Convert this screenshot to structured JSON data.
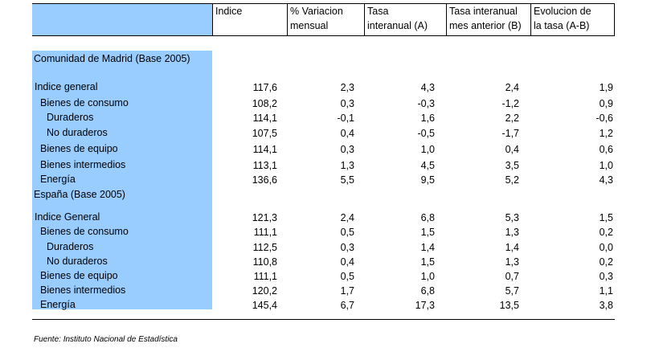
{
  "header": {
    "col1": "Indice",
    "col2_line1": "% Variacion",
    "col2_line2": "mensual",
    "col3_line1": "Tasa",
    "col3_line2": "interanual (A)",
    "col4_line1": "Tasa interanual",
    "col4_line2": "mes anterior (B)",
    "col5_line1": "Evolucion de",
    "col5_line2": "la tasa (A-B)"
  },
  "sections": [
    {
      "title": "Comunidad de Madrid (Base 2005)",
      "rows": [
        {
          "label": "Indice general",
          "level": 0,
          "indice": "117,6",
          "variacion": "2,3",
          "tasa_a": "4,3",
          "tasa_b": "2,4",
          "evolucion": "1,9"
        },
        {
          "label": "Bienes de consumo",
          "level": 1,
          "indice": "108,2",
          "variacion": "0,3",
          "tasa_a": "-0,3",
          "tasa_b": "-1,2",
          "evolucion": "0,9"
        },
        {
          "label": "Duraderos",
          "level": 2,
          "indice": "114,1",
          "variacion": "-0,1",
          "tasa_a": "1,6",
          "tasa_b": "2,2",
          "evolucion": "-0,6"
        },
        {
          "label": "No duraderos",
          "level": 2,
          "indice": "107,5",
          "variacion": "0,4",
          "tasa_a": "-0,5",
          "tasa_b": "-1,7",
          "evolucion": "1,2"
        },
        {
          "label": "Bienes de equipo",
          "level": 1,
          "indice": "114,1",
          "variacion": "0,3",
          "tasa_a": "1,0",
          "tasa_b": "0,4",
          "evolucion": "0,6"
        },
        {
          "label": "Bienes intermedios",
          "level": 1,
          "indice": "113,1",
          "variacion": "1,3",
          "tasa_a": "4,5",
          "tasa_b": "3,5",
          "evolucion": "1,0"
        },
        {
          "label": "Energía",
          "level": 1,
          "indice": "136,6",
          "variacion": "5,5",
          "tasa_a": "9,5",
          "tasa_b": "5,2",
          "evolucion": "4,3"
        }
      ]
    },
    {
      "title": "España (Base 2005)",
      "rows": [
        {
          "label": "Indice General",
          "level": 0,
          "indice": "121,3",
          "variacion": "2,4",
          "tasa_a": "6,8",
          "tasa_b": "5,3",
          "evolucion": "1,5"
        },
        {
          "label": "Bienes de consumo",
          "level": 1,
          "indice": "111,1",
          "variacion": "0,5",
          "tasa_a": "1,5",
          "tasa_b": "1,3",
          "evolucion": "0,2"
        },
        {
          "label": "Duraderos",
          "level": 2,
          "indice": "112,5",
          "variacion": "0,3",
          "tasa_a": "1,4",
          "tasa_b": "1,4",
          "evolucion": "0,0"
        },
        {
          "label": "No duraderos",
          "level": 2,
          "indice": "110,8",
          "variacion": "0,4",
          "tasa_a": "1,5",
          "tasa_b": "1,3",
          "evolucion": "0,2"
        },
        {
          "label": "Bienes de equipo",
          "level": 1,
          "indice": "111,1",
          "variacion": "0,5",
          "tasa_a": "1,0",
          "tasa_b": "0,7",
          "evolucion": "0,3"
        },
        {
          "label": "Bienes intermedios",
          "level": 1,
          "indice": "120,2",
          "variacion": "1,7",
          "tasa_a": "6,8",
          "tasa_b": "5,7",
          "evolucion": "1,1"
        },
        {
          "label": "Energía",
          "level": 1,
          "indice": "145,4",
          "variacion": "6,7",
          "tasa_a": "17,3",
          "tasa_b": "13,5",
          "evolucion": "3,8"
        }
      ]
    }
  ],
  "footer": {
    "source": "Fuente: Instituto Nacional de Estadística"
  },
  "colors": {
    "label_column_fill": "#99ccff",
    "rule": "#000000"
  }
}
